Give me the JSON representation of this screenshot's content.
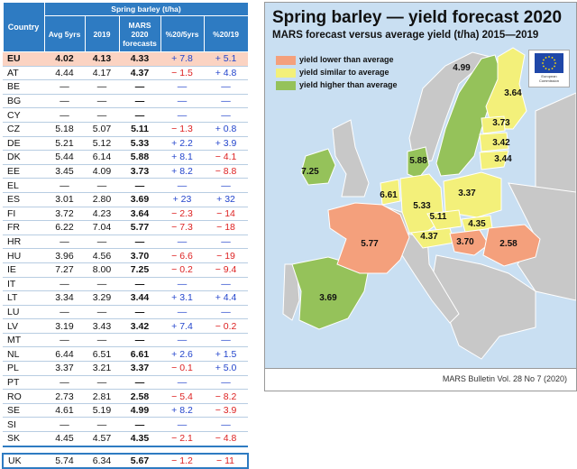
{
  "table": {
    "header_group": "Spring barley (t/ha)",
    "columns": [
      "Country",
      "Avg 5yrs",
      "2019",
      "MARS 2020 forecasts",
      "%20/5yrs",
      "%20/19"
    ],
    "rows": [
      {
        "cc": "EU",
        "avg": "4.02",
        "y2019": "4.13",
        "f2020": "4.33",
        "p5": "+ 7.8",
        "p19": "+ 5.1"
      },
      {
        "cc": "AT",
        "avg": "4.44",
        "y2019": "4.17",
        "f2020": "4.37",
        "p5": "− 1.5",
        "p19": "+ 4.8"
      },
      {
        "cc": "BE",
        "avg": "—",
        "y2019": "—",
        "f2020": "—",
        "p5": "—",
        "p19": "—"
      },
      {
        "cc": "BG",
        "avg": "—",
        "y2019": "—",
        "f2020": "—",
        "p5": "—",
        "p19": "—"
      },
      {
        "cc": "CY",
        "avg": "—",
        "y2019": "—",
        "f2020": "—",
        "p5": "—",
        "p19": "—"
      },
      {
        "cc": "CZ",
        "avg": "5.18",
        "y2019": "5.07",
        "f2020": "5.11",
        "p5": "− 1.3",
        "p19": "+ 0.8"
      },
      {
        "cc": "DE",
        "avg": "5.21",
        "y2019": "5.12",
        "f2020": "5.33",
        "p5": "+ 2.2",
        "p19": "+ 3.9"
      },
      {
        "cc": "DK",
        "avg": "5.44",
        "y2019": "6.14",
        "f2020": "5.88",
        "p5": "+ 8.1",
        "p19": "− 4.1"
      },
      {
        "cc": "EE",
        "avg": "3.45",
        "y2019": "4.09",
        "f2020": "3.73",
        "p5": "+ 8.2",
        "p19": "− 8.8"
      },
      {
        "cc": "EL",
        "avg": "—",
        "y2019": "—",
        "f2020": "—",
        "p5": "—",
        "p19": "—"
      },
      {
        "cc": "ES",
        "avg": "3.01",
        "y2019": "2.80",
        "f2020": "3.69",
        "p5": "+ 23",
        "p19": "+ 32"
      },
      {
        "cc": "FI",
        "avg": "3.72",
        "y2019": "4.23",
        "f2020": "3.64",
        "p5": "− 2.3",
        "p19": "− 14"
      },
      {
        "cc": "FR",
        "avg": "6.22",
        "y2019": "7.04",
        "f2020": "5.77",
        "p5": "− 7.3",
        "p19": "− 18"
      },
      {
        "cc": "HR",
        "avg": "—",
        "y2019": "—",
        "f2020": "—",
        "p5": "—",
        "p19": "—"
      },
      {
        "cc": "HU",
        "avg": "3.96",
        "y2019": "4.56",
        "f2020": "3.70",
        "p5": "− 6.6",
        "p19": "− 19"
      },
      {
        "cc": "IE",
        "avg": "7.27",
        "y2019": "8.00",
        "f2020": "7.25",
        "p5": "− 0.2",
        "p19": "− 9.4"
      },
      {
        "cc": "IT",
        "avg": "—",
        "y2019": "—",
        "f2020": "—",
        "p5": "—",
        "p19": "—"
      },
      {
        "cc": "LT",
        "avg": "3.34",
        "y2019": "3.29",
        "f2020": "3.44",
        "p5": "+ 3.1",
        "p19": "+ 4.4"
      },
      {
        "cc": "LU",
        "avg": "—",
        "y2019": "—",
        "f2020": "—",
        "p5": "—",
        "p19": "—"
      },
      {
        "cc": "LV",
        "avg": "3.19",
        "y2019": "3.43",
        "f2020": "3.42",
        "p5": "+ 7.4",
        "p19": "− 0.2"
      },
      {
        "cc": "MT",
        "avg": "—",
        "y2019": "—",
        "f2020": "—",
        "p5": "—",
        "p19": "—"
      },
      {
        "cc": "NL",
        "avg": "6.44",
        "y2019": "6.51",
        "f2020": "6.61",
        "p5": "+ 2.6",
        "p19": "+ 1.5"
      },
      {
        "cc": "PL",
        "avg": "3.37",
        "y2019": "3.21",
        "f2020": "3.37",
        "p5": "− 0.1",
        "p19": "+ 5.0"
      },
      {
        "cc": "PT",
        "avg": "—",
        "y2019": "—",
        "f2020": "—",
        "p5": "—",
        "p19": "—"
      },
      {
        "cc": "RO",
        "avg": "2.73",
        "y2019": "2.81",
        "f2020": "2.58",
        "p5": "− 5.4",
        "p19": "− 8.2"
      },
      {
        "cc": "SE",
        "avg": "4.61",
        "y2019": "5.19",
        "f2020": "4.99",
        "p5": "+ 8.2",
        "p19": "− 3.9"
      },
      {
        "cc": "SI",
        "avg": "—",
        "y2019": "—",
        "f2020": "—",
        "p5": "—",
        "p19": "—"
      },
      {
        "cc": "SK",
        "avg": "4.45",
        "y2019": "4.57",
        "f2020": "4.35",
        "p5": "− 2.1",
        "p19": "− 4.8"
      }
    ],
    "uk_row": {
      "cc": "UK",
      "avg": "5.74",
      "y2019": "6.34",
      "f2020": "5.67",
      "p5": "− 1.2",
      "p19": "− 11"
    }
  },
  "map": {
    "title": "Spring barley — yield forecast 2020",
    "subtitle": "MARS forecast versus average yield (t/ha) 2015—2019",
    "legend": [
      {
        "label": "yield lower than average",
        "color": "#f4a07c"
      },
      {
        "label": "yield similar to average",
        "color": "#f3f07a"
      },
      {
        "label": "yield higher than average",
        "color": "#95c25a"
      }
    ],
    "footer": "MARS Bulletin Vol. 28 No 7 (2020)",
    "logo_text": "European Commission",
    "colors": {
      "sea": "#c9dff2",
      "lower": "#f4a07c",
      "similar": "#f3f07a",
      "higher": "#95c25a",
      "nodata": "#c8c8c8",
      "border": "#ffffff"
    },
    "value_labels": [
      "4.99",
      "3.64",
      "3.73",
      "3.42",
      "3.44",
      "7.25",
      "5.88",
      "6.61",
      "5.33",
      "3.37",
      "5.11",
      "4.35",
      "4.37",
      "3.70",
      "2.58",
      "5.77",
      "3.69"
    ]
  },
  "chart_data": {
    "type": "table",
    "title": "Spring barley (t/ha)",
    "columns": [
      "Country",
      "Avg 5yrs",
      "2019",
      "MARS 2020 forecasts",
      "%20/5yrs",
      "%20/19"
    ],
    "rows": [
      [
        "EU",
        4.02,
        4.13,
        4.33,
        7.8,
        5.1
      ],
      [
        "AT",
        4.44,
        4.17,
        4.37,
        -1.5,
        4.8
      ],
      [
        "CZ",
        5.18,
        5.07,
        5.11,
        -1.3,
        0.8
      ],
      [
        "DE",
        5.21,
        5.12,
        5.33,
        2.2,
        3.9
      ],
      [
        "DK",
        5.44,
        6.14,
        5.88,
        8.1,
        -4.1
      ],
      [
        "EE",
        3.45,
        4.09,
        3.73,
        8.2,
        -8.8
      ],
      [
        "ES",
        3.01,
        2.8,
        3.69,
        23,
        32
      ],
      [
        "FI",
        3.72,
        4.23,
        3.64,
        -2.3,
        -14
      ],
      [
        "FR",
        6.22,
        7.04,
        5.77,
        -7.3,
        -18
      ],
      [
        "HU",
        3.96,
        4.56,
        3.7,
        -6.6,
        -19
      ],
      [
        "IE",
        7.27,
        8.0,
        7.25,
        -0.2,
        -9.4
      ],
      [
        "LT",
        3.34,
        3.29,
        3.44,
        3.1,
        4.4
      ],
      [
        "LV",
        3.19,
        3.43,
        3.42,
        7.4,
        -0.2
      ],
      [
        "NL",
        6.44,
        6.51,
        6.61,
        2.6,
        1.5
      ],
      [
        "PL",
        3.37,
        3.21,
        3.37,
        -0.1,
        5.0
      ],
      [
        "RO",
        2.73,
        2.81,
        2.58,
        -5.4,
        -8.2
      ],
      [
        "SE",
        4.61,
        5.19,
        4.99,
        8.2,
        -3.9
      ],
      [
        "SK",
        4.45,
        4.57,
        4.35,
        -2.1,
        -4.8
      ],
      [
        "UK",
        5.74,
        6.34,
        5.67,
        -1.2,
        -11
      ]
    ]
  }
}
